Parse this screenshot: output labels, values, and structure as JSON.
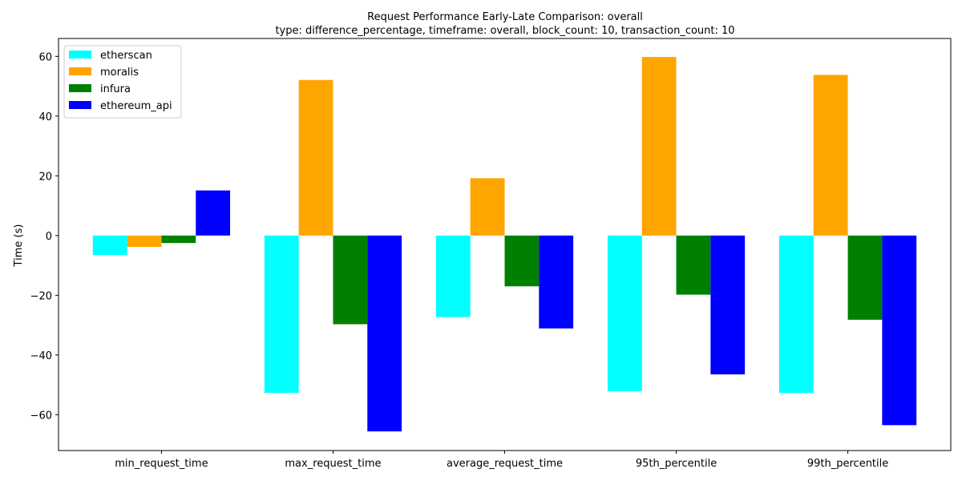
{
  "chart_data": {
    "type": "bar",
    "title": "Request Performance Early-Late Comparison: overall",
    "subtitle": "type: difference_percentage, timeframe: overall, block_count: 10, transaction_count: 10",
    "xlabel": "",
    "ylabel": "Time (s)",
    "ylim": [
      -72,
      66
    ],
    "yticks": [
      -60,
      -40,
      -20,
      0,
      20,
      40,
      60
    ],
    "grid": false,
    "legend_position": "top-left",
    "categories": [
      "min_request_time",
      "max_request_time",
      "average_request_time",
      "95th_percentile",
      "99th_percentile"
    ],
    "series": [
      {
        "name": "etherscan",
        "color": "#00ffff",
        "values": [
          -6.5,
          -52.7,
          -27.3,
          -52.1,
          -52.7
        ]
      },
      {
        "name": "moralis",
        "color": "#ffa500",
        "values": [
          -3.8,
          52.1,
          19.2,
          59.8,
          53.8
        ]
      },
      {
        "name": "infura",
        "color": "#008000",
        "values": [
          -2.5,
          -29.7,
          -17.0,
          -19.8,
          -28.2
        ]
      },
      {
        "name": "ethereum_api",
        "color": "#0000ff",
        "values": [
          15.1,
          -65.6,
          -31.1,
          -46.5,
          -63.5
        ]
      }
    ]
  }
}
